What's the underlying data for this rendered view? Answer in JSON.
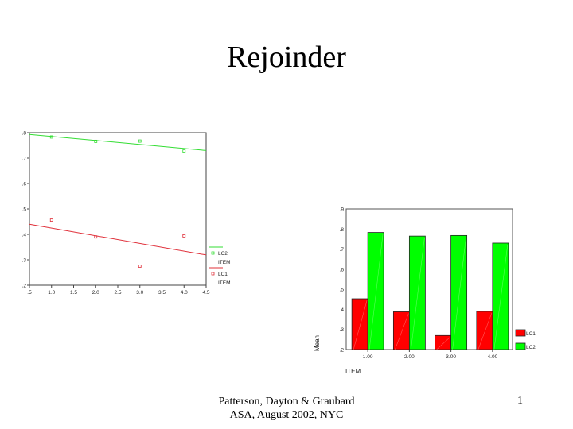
{
  "slide": {
    "title": "Rejoinder",
    "footer_line1": "Patterson, Dayton & Graubard",
    "footer_line2": "ASA, August 2002, NYC",
    "page_number": "1"
  },
  "colors": {
    "lc1": "#ff0000",
    "lc2": "#00ff00",
    "lc1_line": "#e0303a",
    "lc2_line": "#33dd33"
  },
  "chart_data": [
    {
      "type": "scatter",
      "title": "",
      "xlabel": "",
      "ylabel": "",
      "xlim": [
        0.5,
        4.5
      ],
      "ylim": [
        0.2,
        0.8
      ],
      "x_ticks": [
        ".5",
        "1.0",
        "1.5",
        "2.0",
        "2.5",
        "3.0",
        "3.5",
        "4.0",
        "4.5"
      ],
      "y_ticks": [
        ".2",
        ".3",
        ".4",
        ".5",
        ".6",
        ".7",
        ".8"
      ],
      "grid": false,
      "legend_position": "right",
      "legend": [
        {
          "line_label": "LC2",
          "marker_label": "ITEM"
        },
        {
          "line_label": "LC1",
          "marker_label": "ITEM"
        }
      ],
      "series": [
        {
          "name": "LC2",
          "x": [
            1,
            2,
            3,
            4
          ],
          "y": [
            0.783,
            0.766,
            0.767,
            0.728
          ],
          "fit_line": {
            "x": [
              0.5,
              4.5
            ],
            "y": [
              0.793,
              0.73
            ]
          }
        },
        {
          "name": "LC1",
          "x": [
            1,
            2,
            3,
            4
          ],
          "y": [
            0.456,
            0.39,
            0.275,
            0.394
          ],
          "fit_line": {
            "x": [
              0.5,
              4.5
            ],
            "y": [
              0.44,
              0.319
            ]
          }
        }
      ]
    },
    {
      "type": "bar",
      "title": "",
      "xlabel": "ITEM",
      "ylabel": "Mean",
      "ylim": [
        0.2,
        0.9
      ],
      "y_ticks": [
        ".2",
        ".3",
        ".4",
        ".5",
        ".6",
        ".7",
        ".8",
        ".9"
      ],
      "categories": [
        "1.00",
        "2.00",
        "3.00",
        "4.00"
      ],
      "grid": false,
      "legend_position": "right",
      "series": [
        {
          "name": "LC1",
          "values": [
            0.453,
            0.388,
            0.27,
            0.39
          ]
        },
        {
          "name": "LC2",
          "values": [
            0.783,
            0.765,
            0.768,
            0.73
          ]
        }
      ]
    }
  ]
}
